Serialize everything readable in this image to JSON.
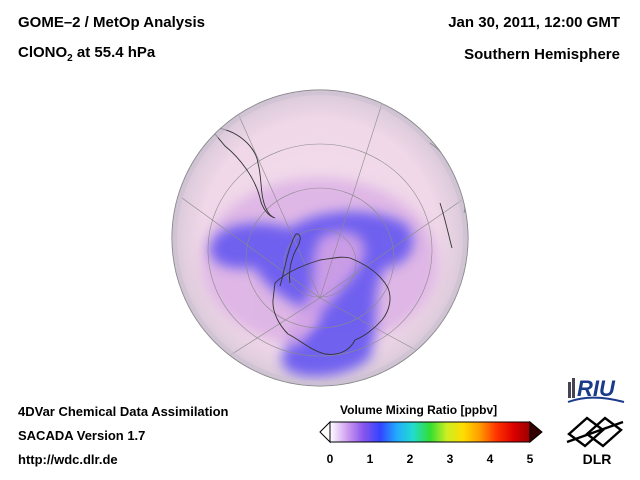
{
  "header": {
    "title_line1": "GOME–2 / MetOp Analysis",
    "title_prefix": "ClONO",
    "title_sub": "2",
    "title_suffix": " at 55.4 hPa",
    "date": "Jan 30, 2011, 12:00 GMT",
    "region": "Southern Hemisphere"
  },
  "footer": {
    "line1": "4DVar Chemical Data Assimilation",
    "line2": "SACADA Version 1.7",
    "line3": "http://wdc.dlr.de"
  },
  "colorbar": {
    "title": "Volume Mixing Ratio [ppbv]",
    "min": 0,
    "max": 5,
    "ticks": [
      "0",
      "1",
      "2",
      "3",
      "4",
      "5"
    ],
    "colors": [
      "#ffffff",
      "#d0a0f0",
      "#8855ee",
      "#3344ff",
      "#22aaff",
      "#22ddcc",
      "#33dd33",
      "#ccee22",
      "#ffdd00",
      "#ff9900",
      "#ff3300",
      "#dd0000",
      "#990000"
    ]
  },
  "logos": {
    "riu": "RIU",
    "dlr": "DLR"
  },
  "map": {
    "projection": "orthographic, south polar",
    "field_colors": {
      "background": "#f1d9e9",
      "low": "#6a5cf0",
      "medium": "#c99add",
      "edge": "#cfc6d6"
    }
  }
}
